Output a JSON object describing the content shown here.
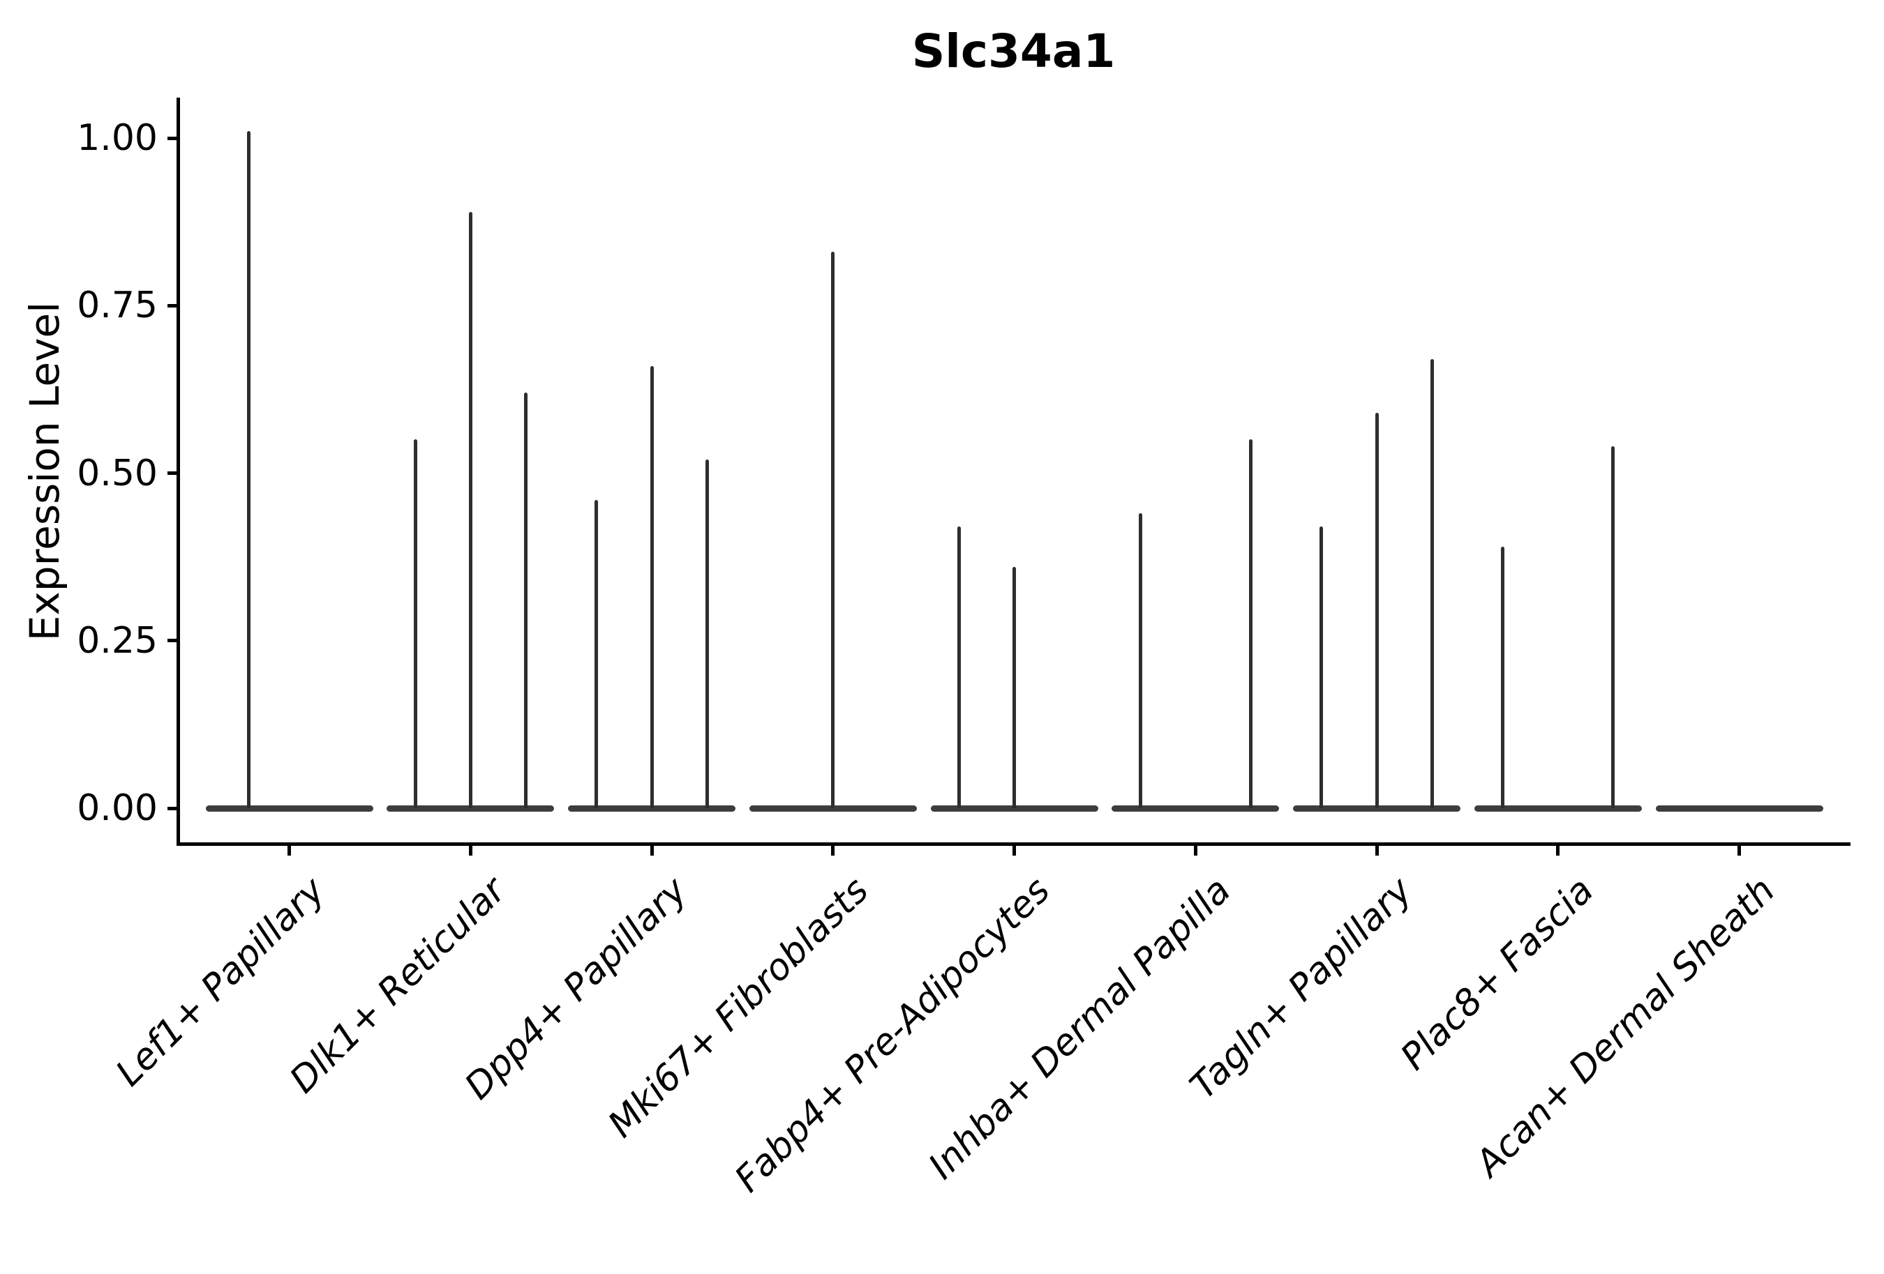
{
  "title": "Slc34a1",
  "y_axis": {
    "label": "Expression Level",
    "tick_labels": [
      "0.00",
      "0.25",
      "0.50",
      "0.75",
      "1.00"
    ],
    "tick_values": [
      0,
      0.25,
      0.5,
      0.75,
      1.0
    ]
  },
  "x_axis": {
    "categories": [
      "Lef1+ Papillary",
      "Dlk1+ Reticular",
      "Dpp4+ Papillary",
      "Mki67+ Fibroblasts",
      "Fabp4+ Pre-Adipocytes",
      "Inhba+ Dermal Papilla",
      "Tagln+ Papillary",
      "Plac8+ Fascia",
      "Acan+ Dermal Sheath"
    ]
  },
  "colors": {
    "violin_band": "#3d3d3d",
    "violin_spike": "#2e2e2e",
    "axis": "#000000",
    "text": "#000000",
    "background": "#ffffff"
  },
  "chart_data": {
    "type": "violin",
    "title": "Slc34a1",
    "xlabel": "",
    "ylabel": "Expression Level",
    "ylim": [
      -0.05,
      1.06
    ],
    "yticks": [
      0,
      0.25,
      0.5,
      0.75,
      1.0
    ],
    "grid": false,
    "legend": "none",
    "categories": [
      "Lef1+ Papillary",
      "Dlk1+ Reticular",
      "Dpp4+ Papillary",
      "Mki67+ Fibroblasts",
      "Fabp4+ Pre-Adipocytes",
      "Inhba+ Dermal Papilla",
      "Tagln+ Papillary",
      "Plac8+ Fascia",
      "Acan+ Dermal Sheath"
    ],
    "description": "Flat violins concentrated at expression 0 for every category, with thin vertical spikes rising to the maximum expression value of rare expressing cells. Each category spans up to three violin slots (left/center/right).",
    "violins": [
      {
        "category": "Lef1+ Papillary",
        "band_at_zero": true,
        "spikes": [
          {
            "slot_frac": 0.26,
            "peak": 1.01
          }
        ]
      },
      {
        "category": "Dlk1+ Reticular",
        "band_at_zero": true,
        "spikes": [
          {
            "slot_frac": 0.17,
            "peak": 0.55
          },
          {
            "slot_frac": 0.5,
            "peak": 0.89
          },
          {
            "slot_frac": 0.83,
            "peak": 0.62
          }
        ]
      },
      {
        "category": "Dpp4+ Papillary",
        "band_at_zero": true,
        "spikes": [
          {
            "slot_frac": 0.17,
            "peak": 0.46
          },
          {
            "slot_frac": 0.5,
            "peak": 0.66
          },
          {
            "slot_frac": 0.83,
            "peak": 0.52
          }
        ]
      },
      {
        "category": "Mki67+ Fibroblasts",
        "band_at_zero": true,
        "spikes": [
          {
            "slot_frac": 0.5,
            "peak": 0.83
          }
        ]
      },
      {
        "category": "Fabp4+ Pre-Adipocytes",
        "band_at_zero": true,
        "spikes": [
          {
            "slot_frac": 0.17,
            "peak": 0.42
          },
          {
            "slot_frac": 0.5,
            "peak": 0.36
          }
        ]
      },
      {
        "category": "Inhba+ Dermal Papilla",
        "band_at_zero": true,
        "spikes": [
          {
            "slot_frac": 0.17,
            "peak": 0.44
          },
          {
            "slot_frac": 0.83,
            "peak": 0.55
          }
        ]
      },
      {
        "category": "Tagln+ Papillary",
        "band_at_zero": true,
        "spikes": [
          {
            "slot_frac": 0.17,
            "peak": 0.42
          },
          {
            "slot_frac": 0.5,
            "peak": 0.59
          },
          {
            "slot_frac": 0.83,
            "peak": 0.67
          }
        ]
      },
      {
        "category": "Plac8+ Fascia",
        "band_at_zero": true,
        "spikes": [
          {
            "slot_frac": 0.17,
            "peak": 0.39
          },
          {
            "slot_frac": 0.83,
            "peak": 0.54
          }
        ]
      },
      {
        "category": "Acan+ Dermal Sheath",
        "band_at_zero": true,
        "spikes": []
      }
    ]
  }
}
